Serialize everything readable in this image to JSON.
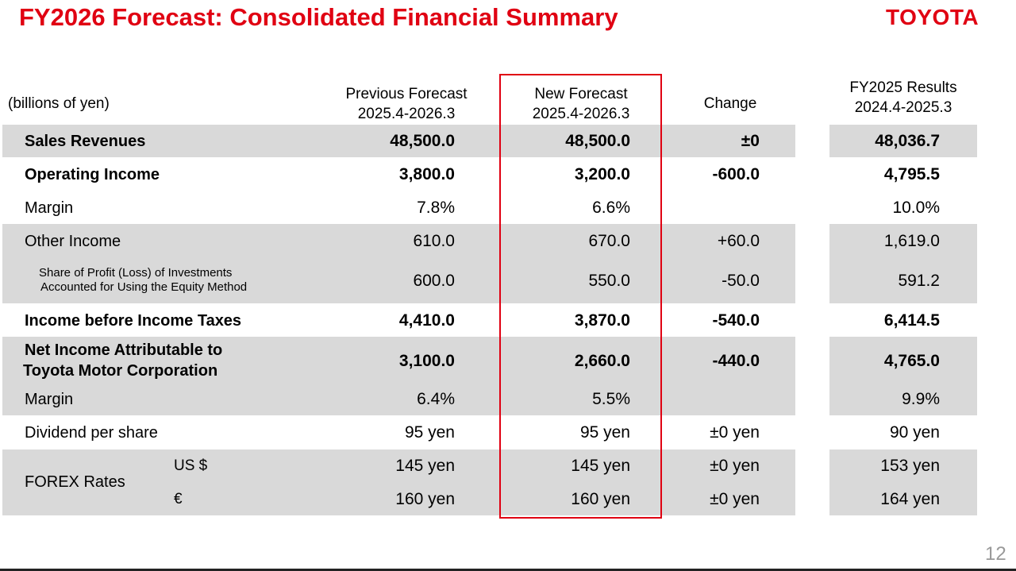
{
  "title": "FY2026 Forecast: Consolidated Financial Summary",
  "logo": "TOYOTA",
  "page_number": "12",
  "header": {
    "units": "(billions of yen)",
    "prev_line1": "Previous Forecast",
    "prev_line2": "2025.4-2026.3",
    "new_line1": "New Forecast",
    "new_line2": "2025.4-2026.3",
    "change": "Change",
    "fy25_line1": "FY2025 Results",
    "fy25_line2": "2024.4-2025.3"
  },
  "rows": {
    "sales": {
      "label": "Sales Revenues",
      "prev": "48,500.0",
      "new": "48,500.0",
      "change": "±0",
      "fy25": "48,036.7"
    },
    "opinc": {
      "label": "Operating Income",
      "prev": "3,800.0",
      "new": "3,200.0",
      "change": "-600.0",
      "fy25": "4,795.5"
    },
    "opmargin": {
      "label": "Margin",
      "prev": "7.8%",
      "new": "6.6%",
      "change": "",
      "fy25": "10.0%"
    },
    "other": {
      "label": "Other Income",
      "prev": "610.0",
      "new": "670.0",
      "change": "+60.0",
      "fy25": "1,619.0"
    },
    "equity": {
      "label_line1": "Share of Profit (Loss) of Investments",
      "label_line2": "Accounted for Using the Equity Method",
      "prev": "600.0",
      "new": "550.0",
      "change": "-50.0",
      "fy25": "591.2"
    },
    "pretax": {
      "label": "Income before Income Taxes",
      "prev": "4,410.0",
      "new": "3,870.0",
      "change": "-540.0",
      "fy25": "6,414.5"
    },
    "netinc": {
      "label_line1": "Net Income Attributable to",
      "label_line2": "Toyota Motor Corporation",
      "prev": "3,100.0",
      "new": "2,660.0",
      "change": "-440.0",
      "fy25": "4,765.0"
    },
    "netmargin": {
      "label": "Margin",
      "prev": "6.4%",
      "new": "5.5%",
      "change": "",
      "fy25": "9.9%"
    },
    "dividend": {
      "label": "Dividend per share",
      "prev": "95 yen",
      "new": "95 yen",
      "change": "±0 yen",
      "fy25": "90 yen"
    },
    "forex": {
      "label": "FOREX Rates",
      "usd": {
        "label": "US $",
        "prev": "145 yen",
        "new": "145 yen",
        "change": "±0 yen",
        "fy25": "153 yen"
      },
      "eur": {
        "label": "€",
        "prev": "160 yen",
        "new": "160 yen",
        "change": "±0 yen",
        "fy25": "164 yen"
      }
    }
  },
  "colors": {
    "brand_red": "#e00012",
    "band_gray": "#d9d9d9"
  }
}
